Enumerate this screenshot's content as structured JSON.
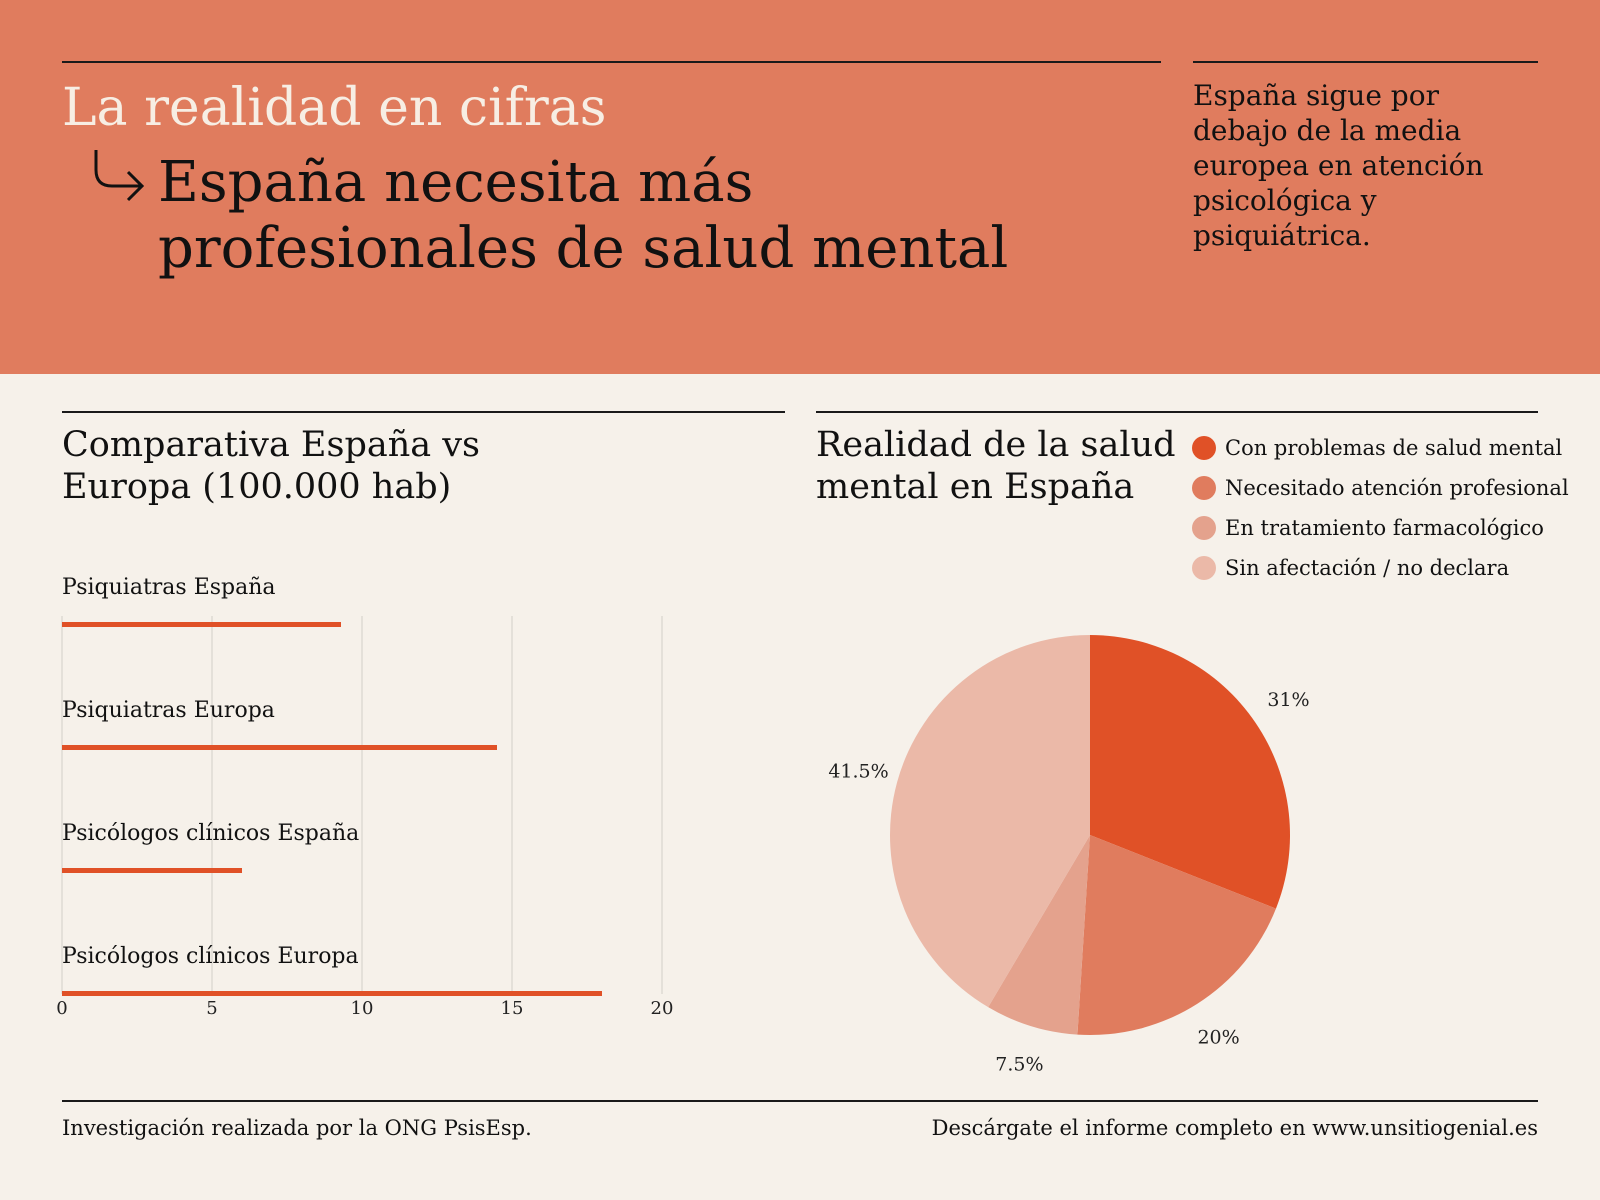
{
  "header": {
    "kicker": "La realidad en cifras",
    "headline_line1": "España necesita más",
    "headline_line2": "profesionales de salud mental",
    "sidenote": "España sigue por debajo de la media europea en atención psicológica y psiquiátrica.",
    "arrow_icon": "arrow-turn-right-icon"
  },
  "bar_section": {
    "title_line1": "Comparativa España vs",
    "title_line2": "Europa (100.000 hab)"
  },
  "pie_section": {
    "title_line1": "Realidad de la salud",
    "title_line2": "mental en España"
  },
  "colors": {
    "header_bg": "#e07c5e",
    "page_bg": "#f6f1ea",
    "bar": "#e05127"
  },
  "chart_data": [
    {
      "type": "bar",
      "orientation": "horizontal",
      "categories": [
        "Psiquiatras España",
        "Psiquiatras Europa",
        "Psicólogos clínicos España",
        "Psicólogos clínicos Europa"
      ],
      "values": [
        9.3,
        14.5,
        6,
        18
      ],
      "xlim": [
        0,
        20
      ],
      "xticks": [
        0,
        5,
        10,
        15,
        20
      ],
      "grid": true,
      "color": "#e05127"
    },
    {
      "type": "pie",
      "labels": [
        "Con problemas de salud mental",
        "Necesitado atención profesional",
        "En tratamiento farmacológico",
        "Sin afectación / no declara"
      ],
      "values": [
        31,
        20,
        7.5,
        41.5
      ],
      "value_labels": [
        "31%",
        "20%",
        "7.5%",
        "41.5%"
      ],
      "colors": [
        "#e05127",
        "#e07c5e",
        "#e4a28d",
        "#ebb9a8"
      ],
      "legend_position": "top-right"
    }
  ],
  "footer": {
    "left": "Investigación realizada por la ONG PsisEsp.",
    "right": "Descárgate el informe completo en www.unsitiogenial.es"
  }
}
